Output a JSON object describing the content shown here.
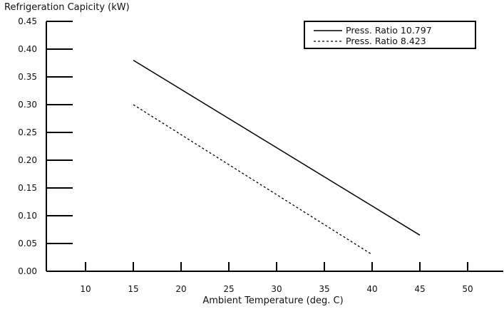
{
  "chart_data": {
    "type": "line",
    "title": "",
    "xlabel": "Ambient Temperature (deg. C)",
    "ylabel": "Refrigeration Capicity (kW)",
    "xlim": [
      5,
      55
    ],
    "ylim": [
      0,
      0.45
    ],
    "x_ticks": [
      "10",
      "15",
      "20",
      "25",
      "30",
      "35",
      "40",
      "45",
      "50"
    ],
    "y_ticks": [
      "0.00",
      "0.05",
      "0.10",
      "0.15",
      "0.20",
      "0.25",
      "0.30",
      "0.35",
      "0.40",
      "0.45"
    ],
    "grid": false,
    "legend_position": "top-right",
    "series": [
      {
        "name": "Press. Ratio 10.797",
        "style": "solid",
        "color": "#000000",
        "x": [
          15,
          45
        ],
        "y": [
          0.38,
          0.065
        ]
      },
      {
        "name": "Press. Ratio 8.423",
        "style": "dashed",
        "color": "#000000",
        "x": [
          15,
          40
        ],
        "y": [
          0.3,
          0.03
        ]
      }
    ]
  }
}
